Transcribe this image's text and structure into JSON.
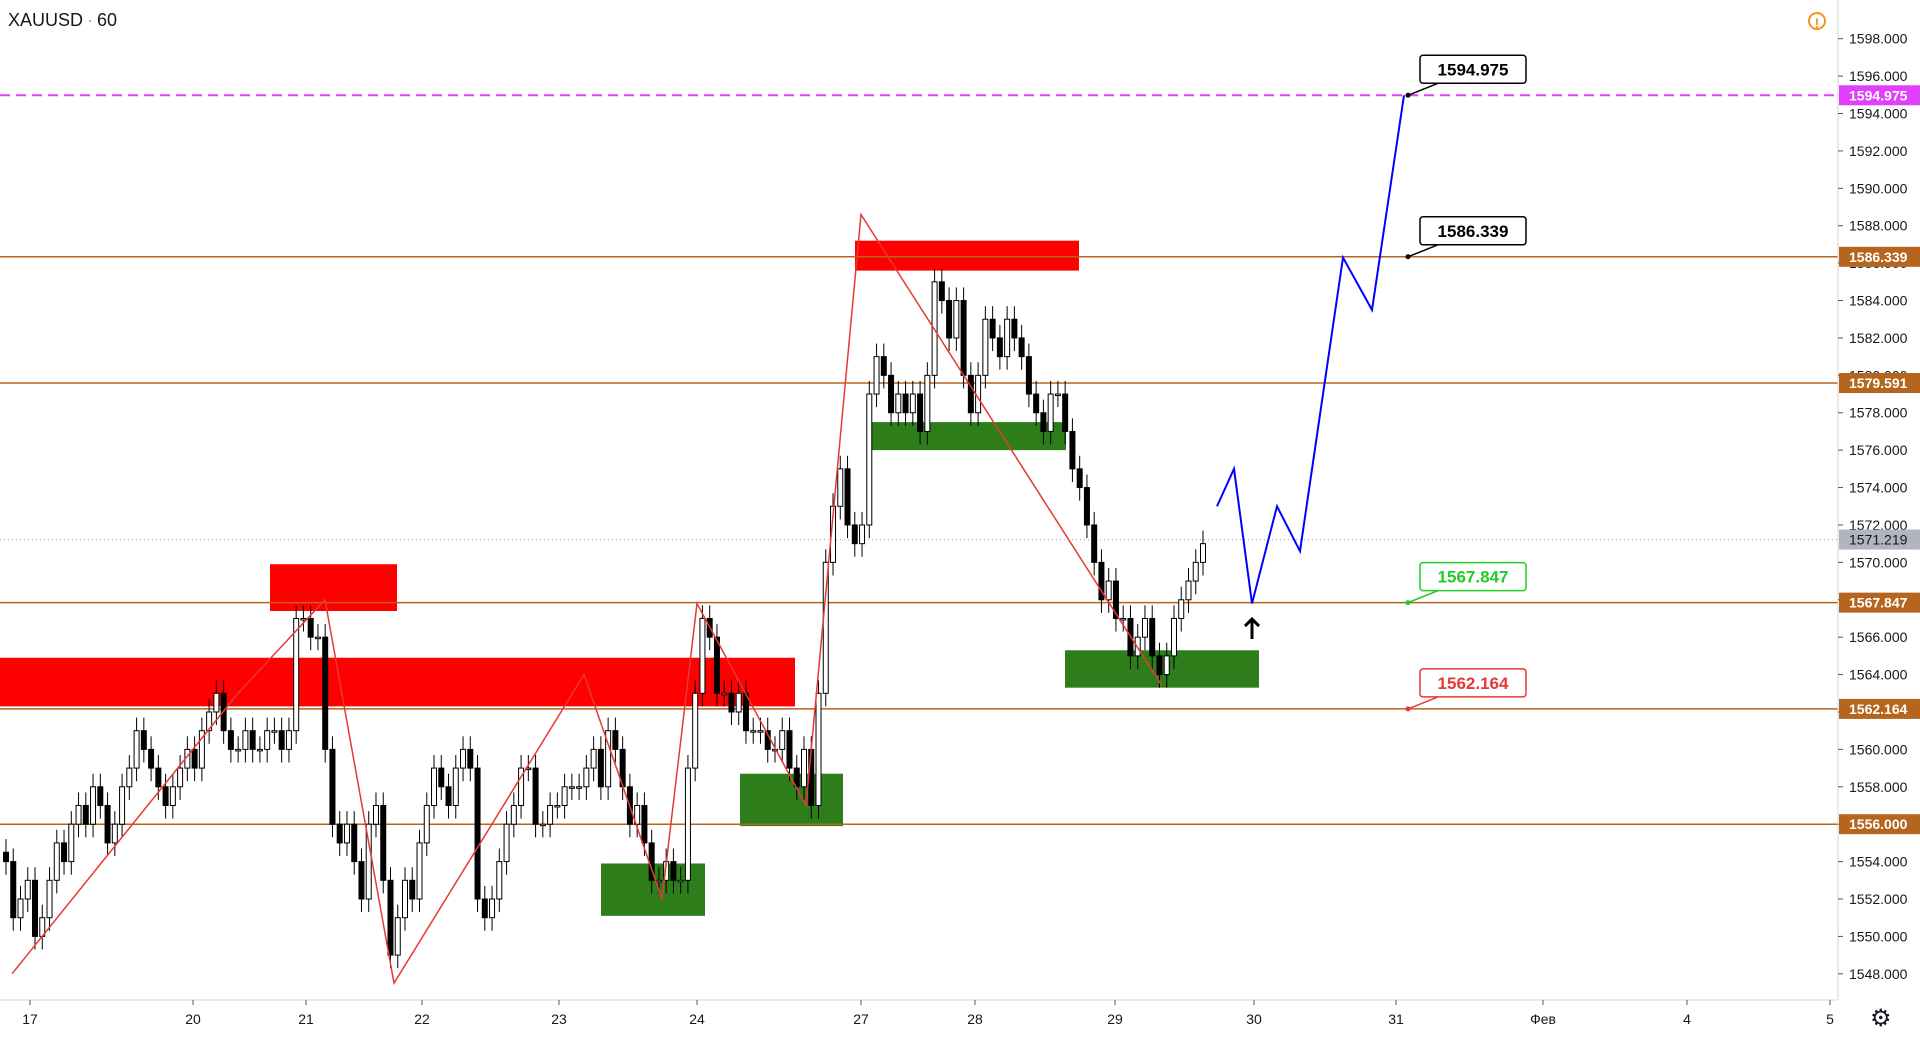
{
  "header": {
    "symbol": "XAUUSD",
    "separator": "·",
    "interval": "60"
  },
  "status_icon": "warning-icon",
  "settings_icon": "gear-icon",
  "price_axis": {
    "min": 1546.6,
    "max": 1599.0,
    "ticks": [
      "1548.000",
      "1550.000",
      "1552.000",
      "1554.000",
      "1556.000",
      "1558.000",
      "1560.000",
      "1562.000",
      "1564.000",
      "1566.000",
      "1568.000",
      "1570.000",
      "1572.000",
      "1574.000",
      "1576.000",
      "1578.000",
      "1580.000",
      "1582.000",
      "1584.000",
      "1586.000",
      "1588.000",
      "1590.000",
      "1592.000",
      "1594.000",
      "1596.000",
      "1598.000"
    ],
    "current_price": "1571.219"
  },
  "time_axis": {
    "labels": [
      "17",
      "20",
      "21",
      "22",
      "23",
      "24",
      "27",
      "28",
      "29",
      "30",
      "31",
      "Фев",
      "4",
      "5"
    ]
  },
  "levels": [
    {
      "price": 1594.975,
      "label": "1594.975",
      "color": "#e040fb",
      "style": "dashed",
      "callout": "1594.975",
      "callout_color": "#000000"
    },
    {
      "price": 1586.339,
      "label": "1586.339",
      "color": "#b5651d",
      "style": "solid",
      "callout": "1586.339",
      "callout_color": "#000000"
    },
    {
      "price": 1579.591,
      "label": "1579.591",
      "color": "#b5651d",
      "style": "solid"
    },
    {
      "price": 1567.847,
      "label": "1567.847",
      "color": "#b5651d",
      "style": "solid",
      "callout": "1567.847",
      "callout_color": "#22cc22"
    },
    {
      "price": 1562.164,
      "label": "1562.164",
      "color": "#b5651d",
      "style": "solid",
      "callout": "1562.164",
      "callout_color": "#e53935"
    },
    {
      "price": 1556.0,
      "label": "1556.000",
      "color": "#b5651d",
      "style": "solid"
    }
  ],
  "colors": {
    "up": "#ffffff",
    "down": "#000000",
    "supply_zone": "#ff0000",
    "demand_zone": "#2e7d1b",
    "zigzag": "#e53935",
    "projection": "#0000ff",
    "axis_label_bg": "#b5651d"
  }
}
